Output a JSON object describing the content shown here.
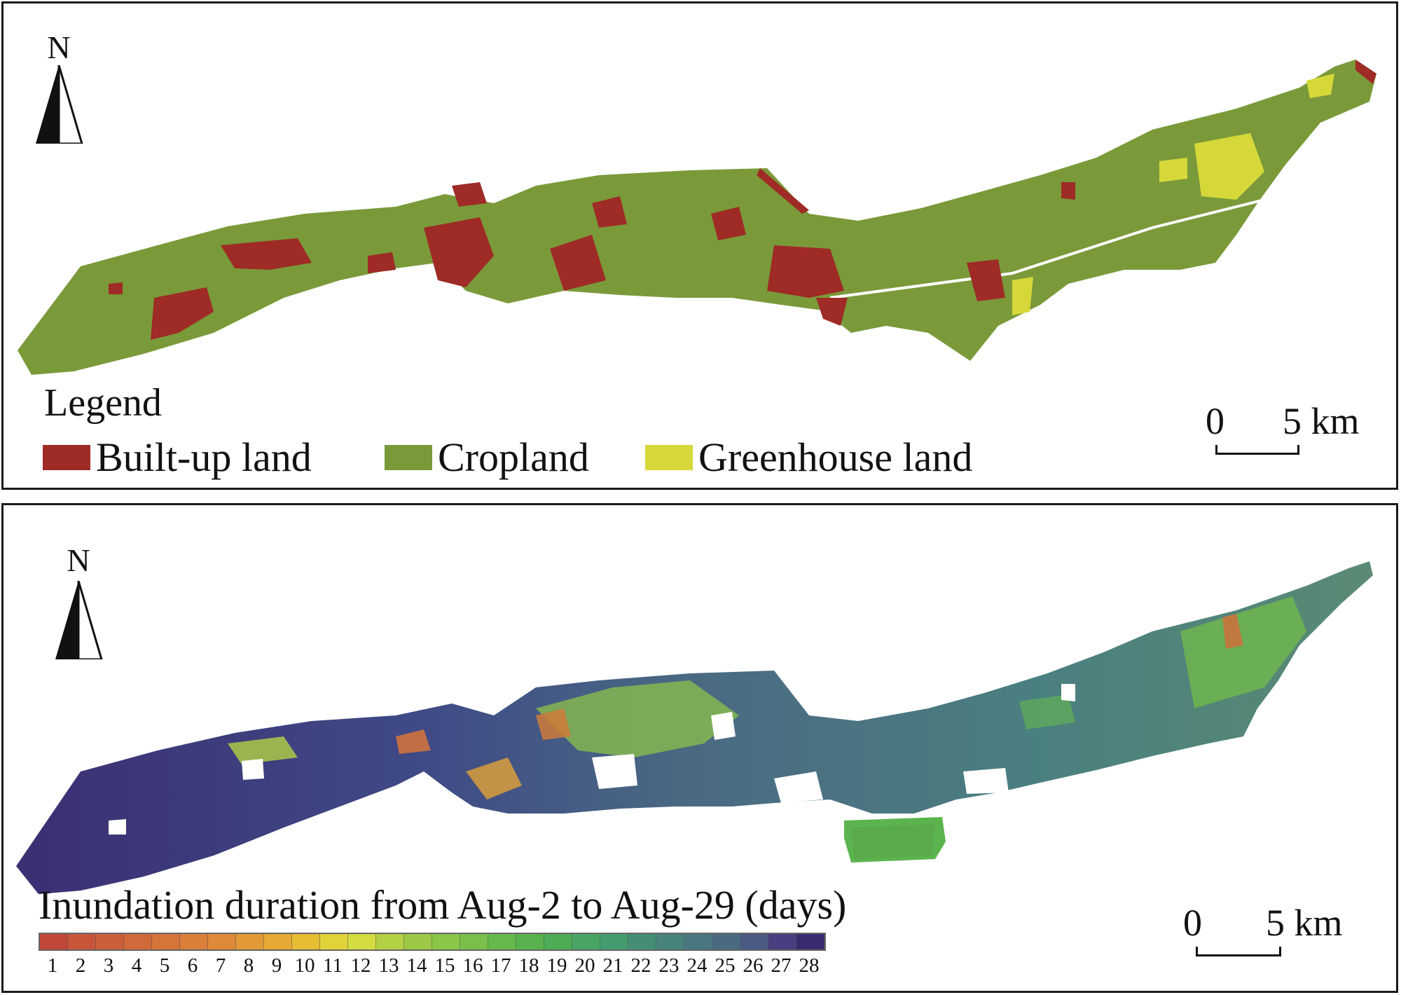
{
  "top_panel": {
    "north_label": "N",
    "legend_title": "Legend",
    "legend_items": [
      {
        "label": "Built-up land",
        "color": "#9e2b25"
      },
      {
        "label": "Cropland",
        "color": "#7a9a3a"
      },
      {
        "label": "Greenhouse land",
        "color": "#d6d83a"
      }
    ],
    "scale": {
      "zero": "0",
      "end": "5 km"
    }
  },
  "bottom_panel": {
    "north_label": "N",
    "colorbar_title": "Inundation duration from Aug-2 to Aug-29 (days)",
    "colorbar_ticks": [
      "1",
      "2",
      "3",
      "4",
      "5",
      "6",
      "7",
      "8",
      "9",
      "10",
      "11",
      "12",
      "13",
      "14",
      "15",
      "16",
      "17",
      "18",
      "19",
      "20",
      "21",
      "22",
      "23",
      "24",
      "25",
      "26",
      "27",
      "28"
    ],
    "colorbar_colors": [
      "#c0473a",
      "#c8553a",
      "#cc5f3a",
      "#d2693a",
      "#d6743a",
      "#da7e3a",
      "#de8a38",
      "#e29a36",
      "#e6aa34",
      "#e6bc32",
      "#e2d23a",
      "#d2dc40",
      "#b2d244",
      "#9cc846",
      "#8ac648",
      "#78c04a",
      "#66b84c",
      "#58b24e",
      "#4eac56",
      "#48a464",
      "#449c6e",
      "#448e76",
      "#48827c",
      "#4a7680",
      "#4a6a82",
      "#4a5a84",
      "#483e80",
      "#3a2a70"
    ],
    "scale": {
      "zero": "0",
      "end": "5 km"
    }
  }
}
